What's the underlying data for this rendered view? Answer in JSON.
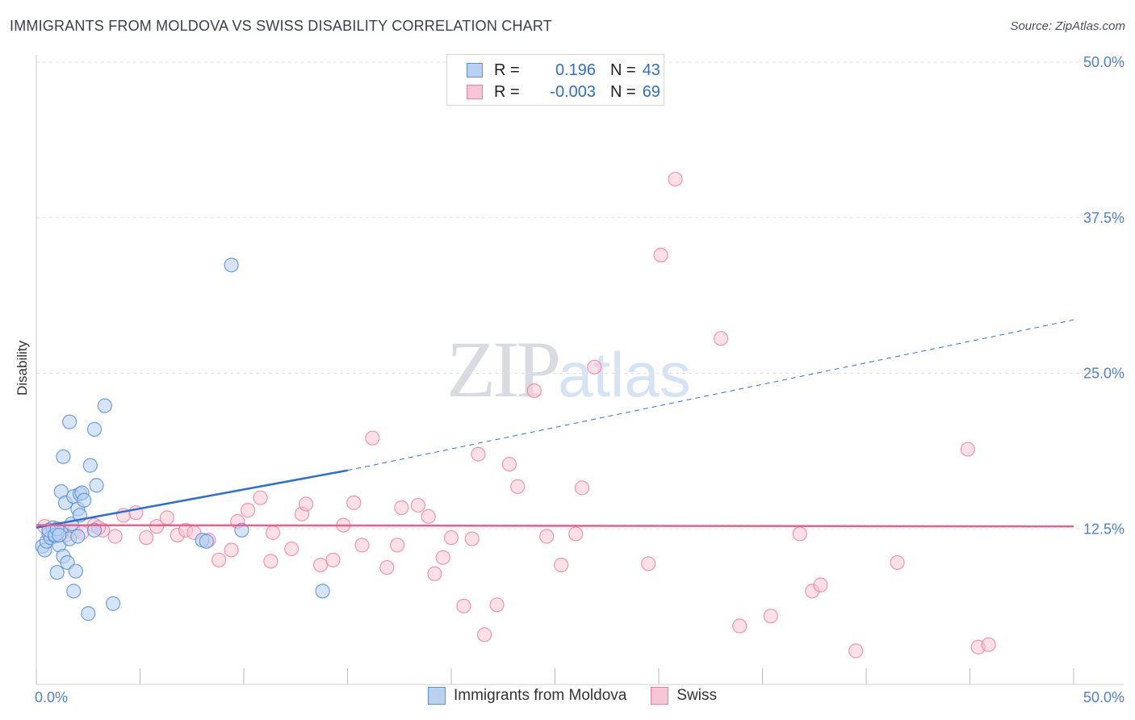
{
  "title": "IMMIGRANTS FROM MOLDOVA VS SWISS DISABILITY CORRELATION CHART",
  "source": "Source: ZipAtlas.com",
  "watermark": {
    "zip": "ZIP",
    "atlas": "atlas"
  },
  "legend": {
    "series1": {
      "r_label": "R =",
      "r_value": "0.196",
      "n_label": "N =",
      "n_value": "43"
    },
    "series2": {
      "r_label": "R =",
      "r_value": "-0.003",
      "n_label": "N =",
      "n_value": "69"
    }
  },
  "chart_data": {
    "type": "scatter",
    "title": "IMMIGRANTS FROM MOLDOVA VS SWISS DISABILITY CORRELATION CHART",
    "xlabel": "",
    "ylabel": "Disability",
    "xlim": [
      0,
      50
    ],
    "ylim": [
      0,
      50
    ],
    "x_tick_labels": [
      "0.0%",
      "50.0%"
    ],
    "y_ticks": [
      12.5,
      25.0,
      37.5,
      50.0
    ],
    "y_tick_labels": [
      "12.5%",
      "25.0%",
      "37.5%",
      "50.0%"
    ],
    "colors": {
      "moldova": "#5b8fd8",
      "moldova_fill": "#b9d2f2",
      "swiss": "#ea7fa0",
      "swiss_fill": "#f7c6d6",
      "moldova_line": "#2d6fd1",
      "swiss_line": "#e8608a"
    },
    "series": [
      {
        "name": "Immigrants from Moldova",
        "trend": {
          "x0": 0,
          "y0": 12.6,
          "x1": 15,
          "y1": 17.2,
          "x_dash_end": 50,
          "y_dash_end": 29.3
        },
        "points": [
          [
            0.3,
            11.1
          ],
          [
            0.4,
            10.8
          ],
          [
            0.5,
            11.5
          ],
          [
            0.6,
            12.1
          ],
          [
            0.7,
            11.8
          ],
          [
            0.8,
            12.6
          ],
          [
            0.9,
            11.9
          ],
          [
            1.0,
            9.0
          ],
          [
            1.1,
            11.2
          ],
          [
            1.2,
            12.2
          ],
          [
            1.3,
            10.3
          ],
          [
            1.2,
            15.5
          ],
          [
            1.3,
            18.3
          ],
          [
            1.4,
            14.6
          ],
          [
            1.5,
            9.8
          ],
          [
            1.6,
            11.7
          ],
          [
            1.6,
            21.1
          ],
          [
            1.7,
            12.9
          ],
          [
            1.8,
            15.1
          ],
          [
            1.8,
            7.5
          ],
          [
            1.9,
            9.1
          ],
          [
            2.0,
            11.9
          ],
          [
            2.0,
            14.1
          ],
          [
            2.1,
            15.3
          ],
          [
            2.1,
            13.6
          ],
          [
            2.2,
            15.4
          ],
          [
            2.3,
            14.8
          ],
          [
            2.5,
            5.7
          ],
          [
            2.6,
            17.6
          ],
          [
            2.8,
            20.5
          ],
          [
            2.8,
            12.4
          ],
          [
            2.9,
            16.0
          ],
          [
            3.3,
            22.4
          ],
          [
            3.7,
            6.5
          ],
          [
            0.6,
            12.4
          ],
          [
            0.9,
            12.0
          ],
          [
            1.0,
            12.5
          ],
          [
            8.0,
            11.6
          ],
          [
            8.2,
            11.5
          ],
          [
            9.4,
            33.7
          ],
          [
            9.9,
            12.4
          ],
          [
            13.8,
            7.5
          ],
          [
            1.1,
            12.0
          ]
        ]
      },
      {
        "name": "Swiss",
        "trend": {
          "x0": 0,
          "y0": 12.8,
          "x1": 50,
          "y1": 12.7
        },
        "points": [
          [
            0.4,
            12.7
          ],
          [
            1.4,
            12.0
          ],
          [
            1.8,
            12.3
          ],
          [
            2.2,
            12.2
          ],
          [
            2.8,
            12.8
          ],
          [
            3.2,
            12.4
          ],
          [
            3.8,
            11.9
          ],
          [
            4.2,
            13.6
          ],
          [
            4.8,
            13.8
          ],
          [
            5.3,
            11.8
          ],
          [
            5.8,
            12.7
          ],
          [
            6.3,
            13.4
          ],
          [
            6.8,
            12.0
          ],
          [
            7.2,
            12.4
          ],
          [
            8.3,
            11.6
          ],
          [
            8.8,
            10.0
          ],
          [
            9.4,
            10.8
          ],
          [
            9.7,
            13.1
          ],
          [
            10.2,
            14.0
          ],
          [
            10.8,
            15.0
          ],
          [
            11.4,
            12.2
          ],
          [
            11.3,
            9.9
          ],
          [
            12.3,
            10.9
          ],
          [
            12.8,
            13.7
          ],
          [
            13.0,
            14.5
          ],
          [
            13.7,
            9.6
          ],
          [
            14.3,
            10.0
          ],
          [
            14.8,
            12.8
          ],
          [
            15.3,
            14.6
          ],
          [
            15.7,
            11.2
          ],
          [
            16.2,
            19.8
          ],
          [
            16.9,
            9.4
          ],
          [
            17.4,
            11.2
          ],
          [
            17.6,
            14.2
          ],
          [
            18.4,
            14.4
          ],
          [
            18.9,
            13.5
          ],
          [
            19.2,
            8.9
          ],
          [
            19.6,
            10.2
          ],
          [
            20.0,
            11.8
          ],
          [
            20.6,
            6.3
          ],
          [
            21.0,
            11.7
          ],
          [
            21.3,
            18.5
          ],
          [
            21.6,
            4.0
          ],
          [
            22.2,
            6.4
          ],
          [
            22.8,
            17.7
          ],
          [
            23.2,
            15.9
          ],
          [
            24.0,
            23.6
          ],
          [
            24.6,
            11.9
          ],
          [
            25.3,
            9.6
          ],
          [
            26.0,
            12.1
          ],
          [
            26.3,
            15.8
          ],
          [
            26.9,
            25.5
          ],
          [
            29.5,
            9.7
          ],
          [
            30.1,
            34.5
          ],
          [
            30.8,
            40.6
          ],
          [
            33.0,
            27.8
          ],
          [
            33.9,
            4.7
          ],
          [
            35.4,
            5.5
          ],
          [
            36.8,
            12.1
          ],
          [
            37.4,
            7.5
          ],
          [
            37.8,
            8.0
          ],
          [
            39.5,
            2.7
          ],
          [
            41.5,
            9.8
          ],
          [
            44.9,
            18.9
          ],
          [
            45.4,
            3.0
          ],
          [
            45.9,
            3.2
          ],
          [
            7.6,
            12.2
          ],
          [
            3.0,
            12.6
          ],
          [
            0.8,
            12.0
          ]
        ]
      }
    ]
  },
  "bottom_legend": {
    "item1": "Immigrants from Moldova",
    "item2": "Swiss"
  }
}
